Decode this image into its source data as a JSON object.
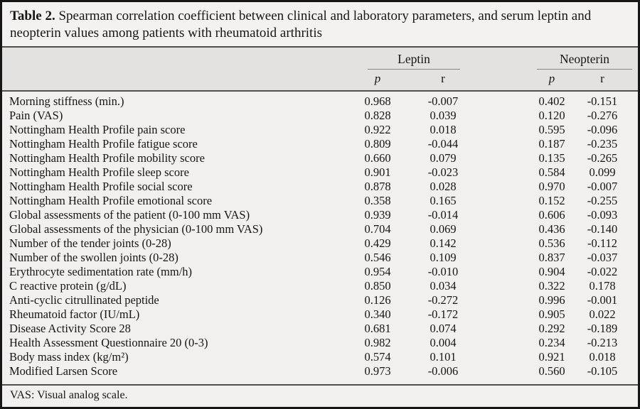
{
  "title": {
    "label": "Table 2.",
    "text": "Spearman correlation coefficient between clinical and laboratory parameters, and serum leptin and neopterin values among patients with rheumatoid arthritis"
  },
  "table": {
    "groups": [
      {
        "label": "Leptin"
      },
      {
        "label": "Neopterin"
      }
    ],
    "subheaders": {
      "p": "p",
      "r": "r"
    },
    "rows": [
      {
        "label": "Morning stiffness (min.)",
        "values": [
          "0.968",
          "-0.007",
          "0.402",
          "-0.151"
        ]
      },
      {
        "label": "Pain (VAS)",
        "values": [
          "0.828",
          "0.039",
          "0.120",
          "-0.276"
        ]
      },
      {
        "label": "Nottingham Health Profile pain score",
        "values": [
          "0.922",
          "0.018",
          "0.595",
          "-0.096"
        ]
      },
      {
        "label": "Nottingham Health Profile fatigue score",
        "values": [
          "0.809",
          "-0.044",
          "0.187",
          "-0.235"
        ]
      },
      {
        "label": "Nottingham Health Profile mobility score",
        "values": [
          "0.660",
          "0.079",
          "0.135",
          "-0.265"
        ]
      },
      {
        "label": "Nottingham Health Profile sleep score",
        "values": [
          "0.901",
          "-0.023",
          "0.584",
          "0.099"
        ]
      },
      {
        "label": "Nottingham Health Profile social score",
        "values": [
          "0.878",
          "0.028",
          "0.970",
          "-0.007"
        ]
      },
      {
        "label": "Nottingham Health Profile emotional score",
        "values": [
          "0.358",
          "0.165",
          "0.152",
          "-0.255"
        ]
      },
      {
        "label": "Global assessments of the patient (0-100 mm VAS)",
        "values": [
          "0.939",
          "-0.014",
          "0.606",
          "-0.093"
        ]
      },
      {
        "label": "Global assessments of the physician (0-100 mm VAS)",
        "values": [
          "0.704",
          "0.069",
          "0.436",
          "-0.140"
        ]
      },
      {
        "label": "Number of the tender joints (0-28)",
        "values": [
          "0.429",
          "0.142",
          "0.536",
          "-0.112"
        ]
      },
      {
        "label": "Number of the swollen joints (0-28)",
        "values": [
          "0.546",
          "0.109",
          "0.837",
          "-0.037"
        ]
      },
      {
        "label": "Erythrocyte sedimentation rate (mm/h)",
        "values": [
          "0.954",
          "-0.010",
          "0.904",
          "-0.022"
        ]
      },
      {
        "label": "C reactive protein (g/dL)",
        "values": [
          "0.850",
          "0.034",
          "0.322",
          "0.178"
        ]
      },
      {
        "label": "Anti-cyclic citrullinated peptide",
        "values": [
          "0.126",
          "-0.272",
          "0.996",
          "-0.001"
        ]
      },
      {
        "label": "Rheumatoid factor (IU/mL)",
        "values": [
          "0.340",
          "-0.172",
          "0.905",
          "0.022"
        ]
      },
      {
        "label": "Disease Activity Score 28",
        "values": [
          "0.681",
          "0.074",
          "0.292",
          "-0.189"
        ]
      },
      {
        "label": "Health Assessment Questionnaire 20 (0-3)",
        "values": [
          "0.982",
          "0.004",
          "0.234",
          "-0.213"
        ]
      },
      {
        "label": "Body mass index (kg/m²)",
        "values": [
          "0.574",
          "0.101",
          "0.921",
          "0.018"
        ]
      },
      {
        "label": "Modified Larsen Score",
        "values": [
          "0.973",
          "-0.006",
          "0.560",
          "-0.105"
        ]
      }
    ]
  },
  "footnote": "VAS: Visual analog scale."
}
